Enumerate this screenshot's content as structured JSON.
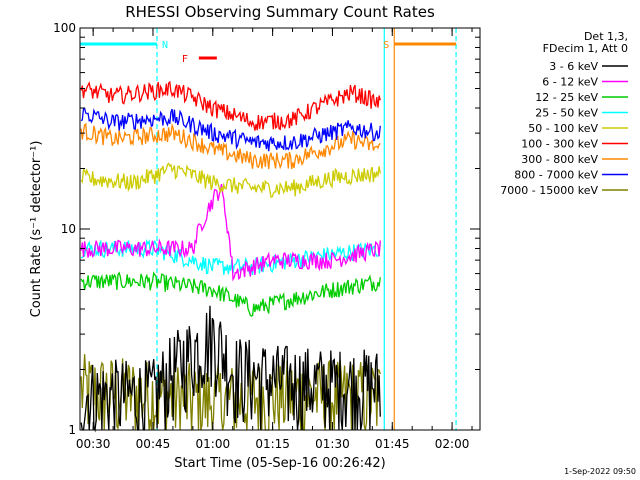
{
  "chart_data": {
    "type": "line",
    "title": "RHESSI Observing Summary Count Rates",
    "xlabel": "Start Time (05-Sep-16 00:26:42)",
    "ylabel": "Count Rate (s⁻¹ detector⁻¹)",
    "y_scale": "log",
    "ylim": [
      1,
      100
    ],
    "xlim": [
      "00:26:42",
      "02:07:00"
    ],
    "x_ticks": [
      "00:30",
      "00:45",
      "01:00",
      "01:15",
      "01:30",
      "01:45",
      "02:00"
    ],
    "y_ticks": [
      "1",
      "10",
      "100"
    ],
    "legend_title": "Det 1,3, FDecim 1, Att 0",
    "legend_position": "top-right",
    "grid": false,
    "series": [
      {
        "name": "3 - 6 keV",
        "color": "#000000",
        "x": [
          "00:27",
          "00:45",
          "00:55",
          "01:00",
          "01:05",
          "01:15",
          "01:30",
          "01:42"
        ],
        "values": [
          1.5,
          1.5,
          2.5,
          3.0,
          2.0,
          1.8,
          1.7,
          1.7
        ]
      },
      {
        "name": "6 - 12 keV",
        "color": "#ff00ff",
        "x": [
          "00:27",
          "00:45",
          "00:55",
          "01:00",
          "01:02",
          "01:05",
          "01:15",
          "01:30",
          "01:42"
        ],
        "values": [
          8,
          8,
          8,
          14,
          16,
          6,
          7,
          7,
          8
        ]
      },
      {
        "name": "12 - 25 keV",
        "color": "#00cc00",
        "x": [
          "00:27",
          "00:45",
          "01:00",
          "01:10",
          "01:20",
          "01:30",
          "01:42"
        ],
        "values": [
          5.5,
          5.5,
          5.0,
          4.0,
          4.5,
          5.0,
          5.5
        ]
      },
      {
        "name": "25 - 50 keV",
        "color": "#00ffff",
        "x": [
          "00:27",
          "00:45",
          "01:00",
          "01:10",
          "01:20",
          "01:30",
          "01:42"
        ],
        "values": [
          8,
          8,
          6.5,
          6.5,
          7,
          7.5,
          8
        ]
      },
      {
        "name": "50 - 100 keV",
        "color": "#cccc00",
        "x": [
          "00:27",
          "00:40",
          "00:50",
          "01:00",
          "01:10",
          "01:20",
          "01:30",
          "01:42"
        ],
        "values": [
          18,
          17,
          20,
          17,
          16,
          16,
          18,
          19
        ]
      },
      {
        "name": "100 - 300 keV",
        "color": "#ff0000",
        "x": [
          "00:27",
          "00:35",
          "00:50",
          "01:00",
          "01:10",
          "01:20",
          "01:35",
          "01:42"
        ],
        "values": [
          50,
          46,
          50,
          40,
          34,
          35,
          48,
          42
        ]
      },
      {
        "name": "300 - 800 keV",
        "color": "#ff8800",
        "x": [
          "00:27",
          "00:35",
          "00:50",
          "01:00",
          "01:10",
          "01:20",
          "01:35",
          "01:42"
        ],
        "values": [
          31,
          28,
          30,
          25,
          22,
          22,
          28,
          25
        ]
      },
      {
        "name": "800 - 7000 keV",
        "color": "#0000ff",
        "x": [
          "00:27",
          "00:35",
          "00:50",
          "01:00",
          "01:10",
          "01:20",
          "01:35",
          "01:42"
        ],
        "values": [
          38,
          34,
          36,
          30,
          27,
          27,
          32,
          30
        ]
      },
      {
        "name": "7000 - 15000 keV",
        "color": "#808000",
        "x": [
          "00:27",
          "00:45",
          "01:00",
          "01:15",
          "01:30",
          "01:42"
        ],
        "values": [
          1.6,
          1.5,
          1.4,
          1.5,
          1.5,
          1.5
        ]
      }
    ],
    "annotations": [
      {
        "label": "N",
        "color": "#00ffff",
        "x_start": "00:26:42",
        "x_end": "00:46:00"
      },
      {
        "label": "F",
        "color": "#ff0000",
        "x_start": "00:54:00",
        "x_end": "00:58:30"
      },
      {
        "label": "S",
        "color": "#ff8800",
        "x_start": "01:45:30",
        "x_end": "02:01:00"
      }
    ],
    "vertical_markers": [
      {
        "x": "00:46:00",
        "color": "#00ffff",
        "style": "dashed"
      },
      {
        "x": "01:43:00",
        "color": "#00ffff",
        "style": "solid"
      },
      {
        "x": "01:45:30",
        "color": "#ff8800",
        "style": "solid"
      },
      {
        "x": "02:01:00",
        "color": "#00ffff",
        "style": "dashed"
      }
    ]
  },
  "footer": {
    "timestamp": "1-Sep-2022 09:50"
  }
}
